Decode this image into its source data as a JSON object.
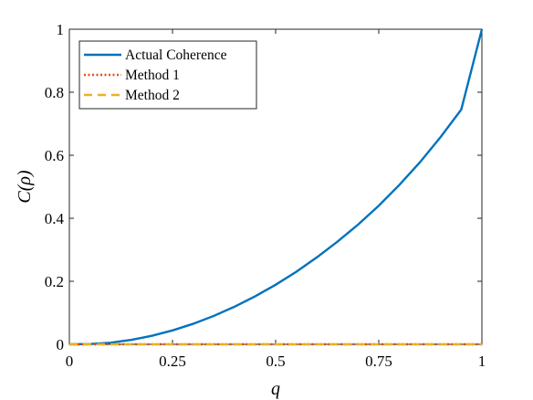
{
  "chart_data": {
    "type": "line",
    "xlabel": "q",
    "ylabel": "C(ρ)",
    "xlim": [
      0,
      1
    ],
    "ylim": [
      0,
      1
    ],
    "x_ticks": [
      "0",
      "0.25",
      "0.5",
      "0.75",
      "1"
    ],
    "y_ticks": [
      "0",
      "0.2",
      "0.4",
      "0.6",
      "0.8",
      "1"
    ],
    "legend_position": "top-left",
    "grid": false,
    "series": [
      {
        "name": "Actual Coherence",
        "color": "#0072BD",
        "style": "solid",
        "x": [
          0,
          0.05,
          0.1,
          0.15,
          0.2,
          0.25,
          0.3,
          0.35,
          0.4,
          0.45,
          0.5,
          0.55,
          0.6,
          0.65,
          0.7,
          0.75,
          0.8,
          0.85,
          0.9,
          0.95,
          1
        ],
        "y": [
          0,
          0.001,
          0.005,
          0.014,
          0.027,
          0.044,
          0.065,
          0.09,
          0.119,
          0.152,
          0.189,
          0.23,
          0.276,
          0.326,
          0.38,
          0.44,
          0.506,
          0.578,
          0.658,
          0.745,
          1.0
        ]
      },
      {
        "name": "Method 1",
        "color": "#D95319",
        "style": "dotted",
        "x": [
          0,
          1
        ],
        "y": [
          0,
          0
        ]
      },
      {
        "name": "Method 2",
        "color": "#EDB120",
        "style": "dashed",
        "x": [
          0,
          1
        ],
        "y": [
          0,
          0
        ]
      }
    ]
  }
}
